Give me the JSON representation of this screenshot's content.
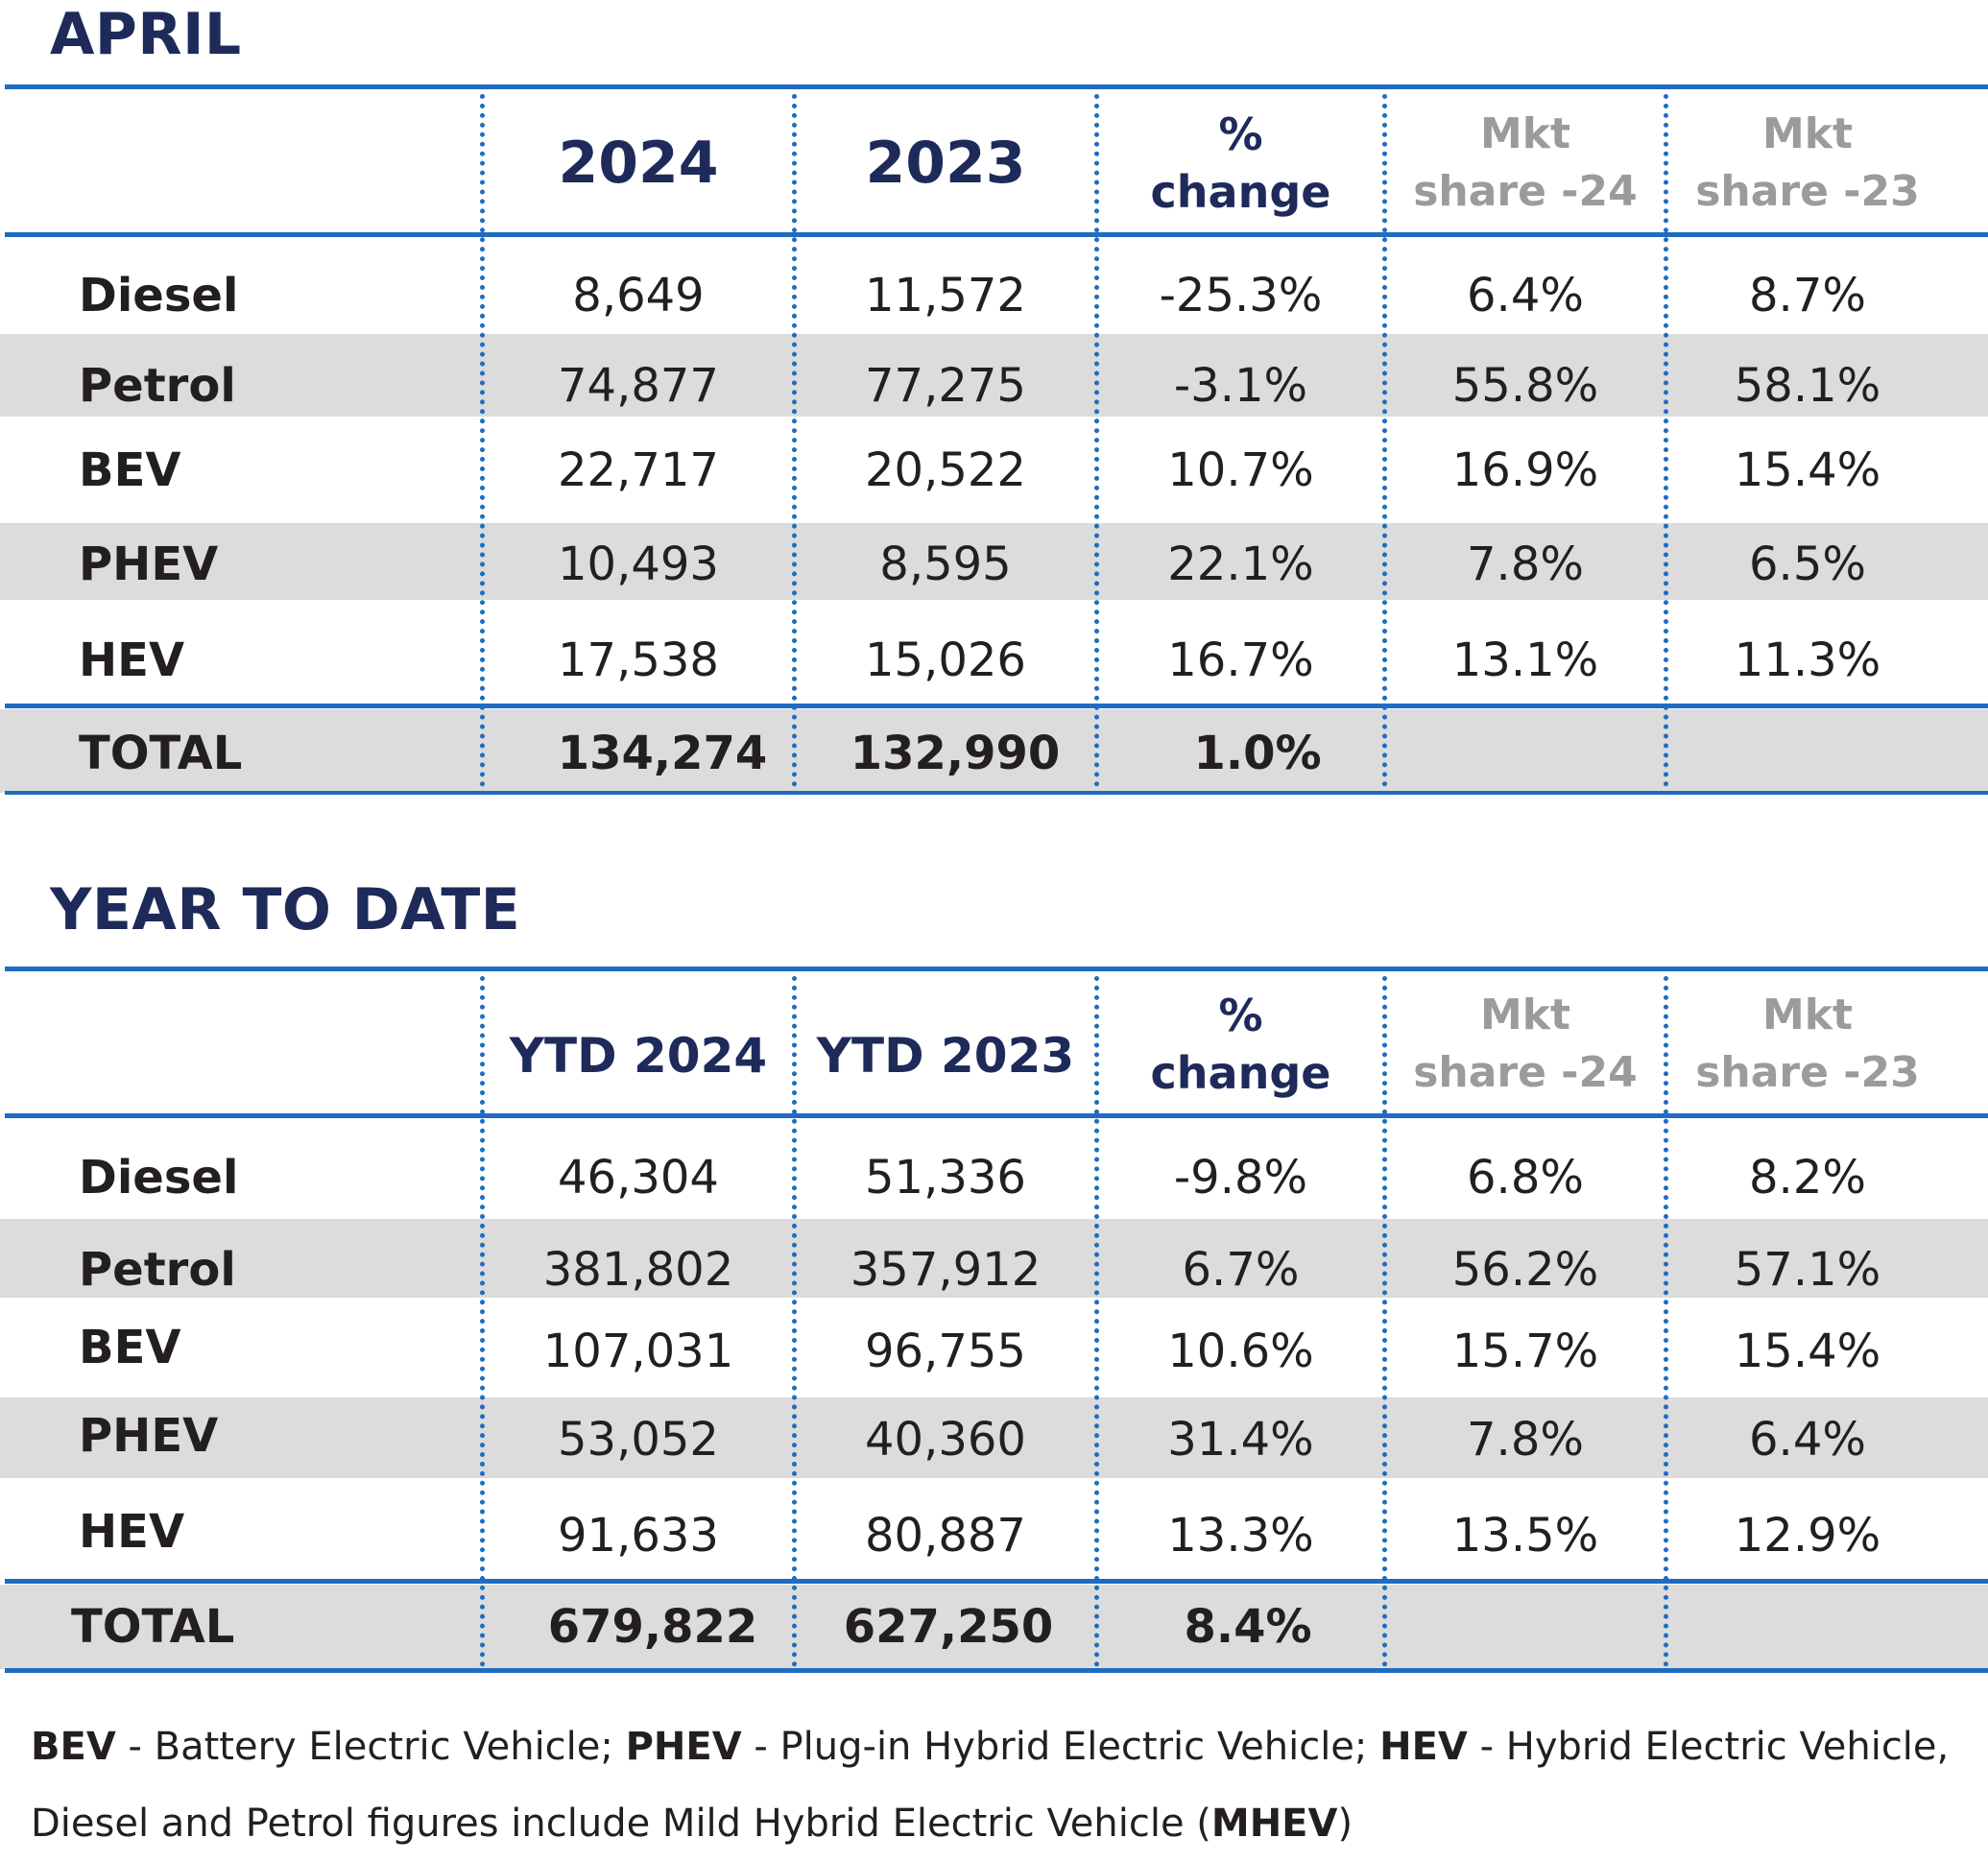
{
  "april": {
    "title": "APRIL",
    "headers": {
      "y1": "2024",
      "y2": "2023",
      "chg_1": "%",
      "chg_2": "change",
      "mkt1_1": "Mkt",
      "mkt1_2": "share -24",
      "mkt2_1": "Mkt",
      "mkt2_2": "share -23"
    },
    "rows": [
      {
        "label": "Diesel",
        "a": "8,649",
        "b": "11,572",
        "c": "-25.3%",
        "d": "6.4%",
        "e": "8.7%"
      },
      {
        "label": "Petrol",
        "a": "74,877",
        "b": "77,275",
        "c": "-3.1%",
        "d": "55.8%",
        "e": "58.1%"
      },
      {
        "label": "BEV",
        "a": "22,717",
        "b": "20,522",
        "c": "10.7%",
        "d": "16.9%",
        "e": "15.4%"
      },
      {
        "label": "PHEV",
        "a": "10,493",
        "b": "8,595",
        "c": "22.1%",
        "d": "7.8%",
        "e": "6.5%"
      },
      {
        "label": "HEV",
        "a": "17,538",
        "b": "15,026",
        "c": "16.7%",
        "d": "13.1%",
        "e": "11.3%"
      }
    ],
    "total": {
      "label": "TOTAL",
      "a": "134,274",
      "b": "132,990",
      "c": "1.0%"
    }
  },
  "ytd": {
    "title": "YEAR TO DATE",
    "headers": {
      "y1": "YTD 2024",
      "y2": "YTD 2023",
      "chg_1": "%",
      "chg_2": "change",
      "mkt1_1": "Mkt",
      "mkt1_2": "share -24",
      "mkt2_1": "Mkt",
      "mkt2_2": "share -23"
    },
    "rows": [
      {
        "label": "Diesel",
        "a": "46,304",
        "b": "51,336",
        "c": "-9.8%",
        "d": "6.8%",
        "e": "8.2%"
      },
      {
        "label": "Petrol",
        "a": "381,802",
        "b": "357,912",
        "c": "6.7%",
        "d": "56.2%",
        "e": "57.1%"
      },
      {
        "label": "BEV",
        "a": "107,031",
        "b": "96,755",
        "c": "10.6%",
        "d": "15.7%",
        "e": "15.4%"
      },
      {
        "label": "PHEV",
        "a": "53,052",
        "b": "40,360",
        "c": "31.4%",
        "d": "7.8%",
        "e": "6.4%"
      },
      {
        "label": "HEV",
        "a": "91,633",
        "b": "80,887",
        "c": "13.3%",
        "d": "13.5%",
        "e": "12.9%"
      }
    ],
    "total": {
      "label": "TOTAL",
      "a": "679,822",
      "b": "627,250",
      "c": "8.4%"
    }
  },
  "footnote": {
    "bev": "BEV",
    "bev_desc": " - Battery Electric Vehicle; ",
    "phev": "PHEV",
    "phev_desc": " - Plug-in Hybrid Electric Vehicle; ",
    "hev": "HEV",
    "hev_desc": " - Hybrid Electric Vehicle,",
    "line2_text": "Diesel and Petrol figures include Mild Hybrid Electric Vehicle (",
    "mhev": "MHEV",
    "line2_end": ")"
  },
  "chart_data": [
    {
      "type": "table",
      "title": "APRIL",
      "columns": [
        "",
        "2024",
        "2023",
        "% change",
        "Mkt share -24",
        "Mkt share -23"
      ],
      "rows": [
        [
          "Diesel",
          8649,
          11572,
          -25.3,
          6.4,
          8.7
        ],
        [
          "Petrol",
          74877,
          77275,
          -3.1,
          55.8,
          58.1
        ],
        [
          "BEV",
          22717,
          20522,
          10.7,
          16.9,
          15.4
        ],
        [
          "PHEV",
          10493,
          8595,
          22.1,
          7.8,
          6.5
        ],
        [
          "HEV",
          17538,
          15026,
          16.7,
          13.1,
          11.3
        ],
        [
          "TOTAL",
          134274,
          132990,
          1.0,
          null,
          null
        ]
      ]
    },
    {
      "type": "table",
      "title": "YEAR TO DATE",
      "columns": [
        "",
        "YTD 2024",
        "YTD 2023",
        "% change",
        "Mkt share -24",
        "Mkt share -23"
      ],
      "rows": [
        [
          "Diesel",
          46304,
          51336,
          -9.8,
          6.8,
          8.2
        ],
        [
          "Petrol",
          381802,
          357912,
          6.7,
          56.2,
          57.1
        ],
        [
          "BEV",
          107031,
          96755,
          10.6,
          15.7,
          15.4
        ],
        [
          "PHEV",
          53052,
          40360,
          31.4,
          7.8,
          6.4
        ],
        [
          "HEV",
          91633,
          80887,
          13.3,
          13.5,
          12.9
        ],
        [
          "TOTAL",
          679822,
          627250,
          8.4,
          null,
          null
        ]
      ]
    }
  ]
}
